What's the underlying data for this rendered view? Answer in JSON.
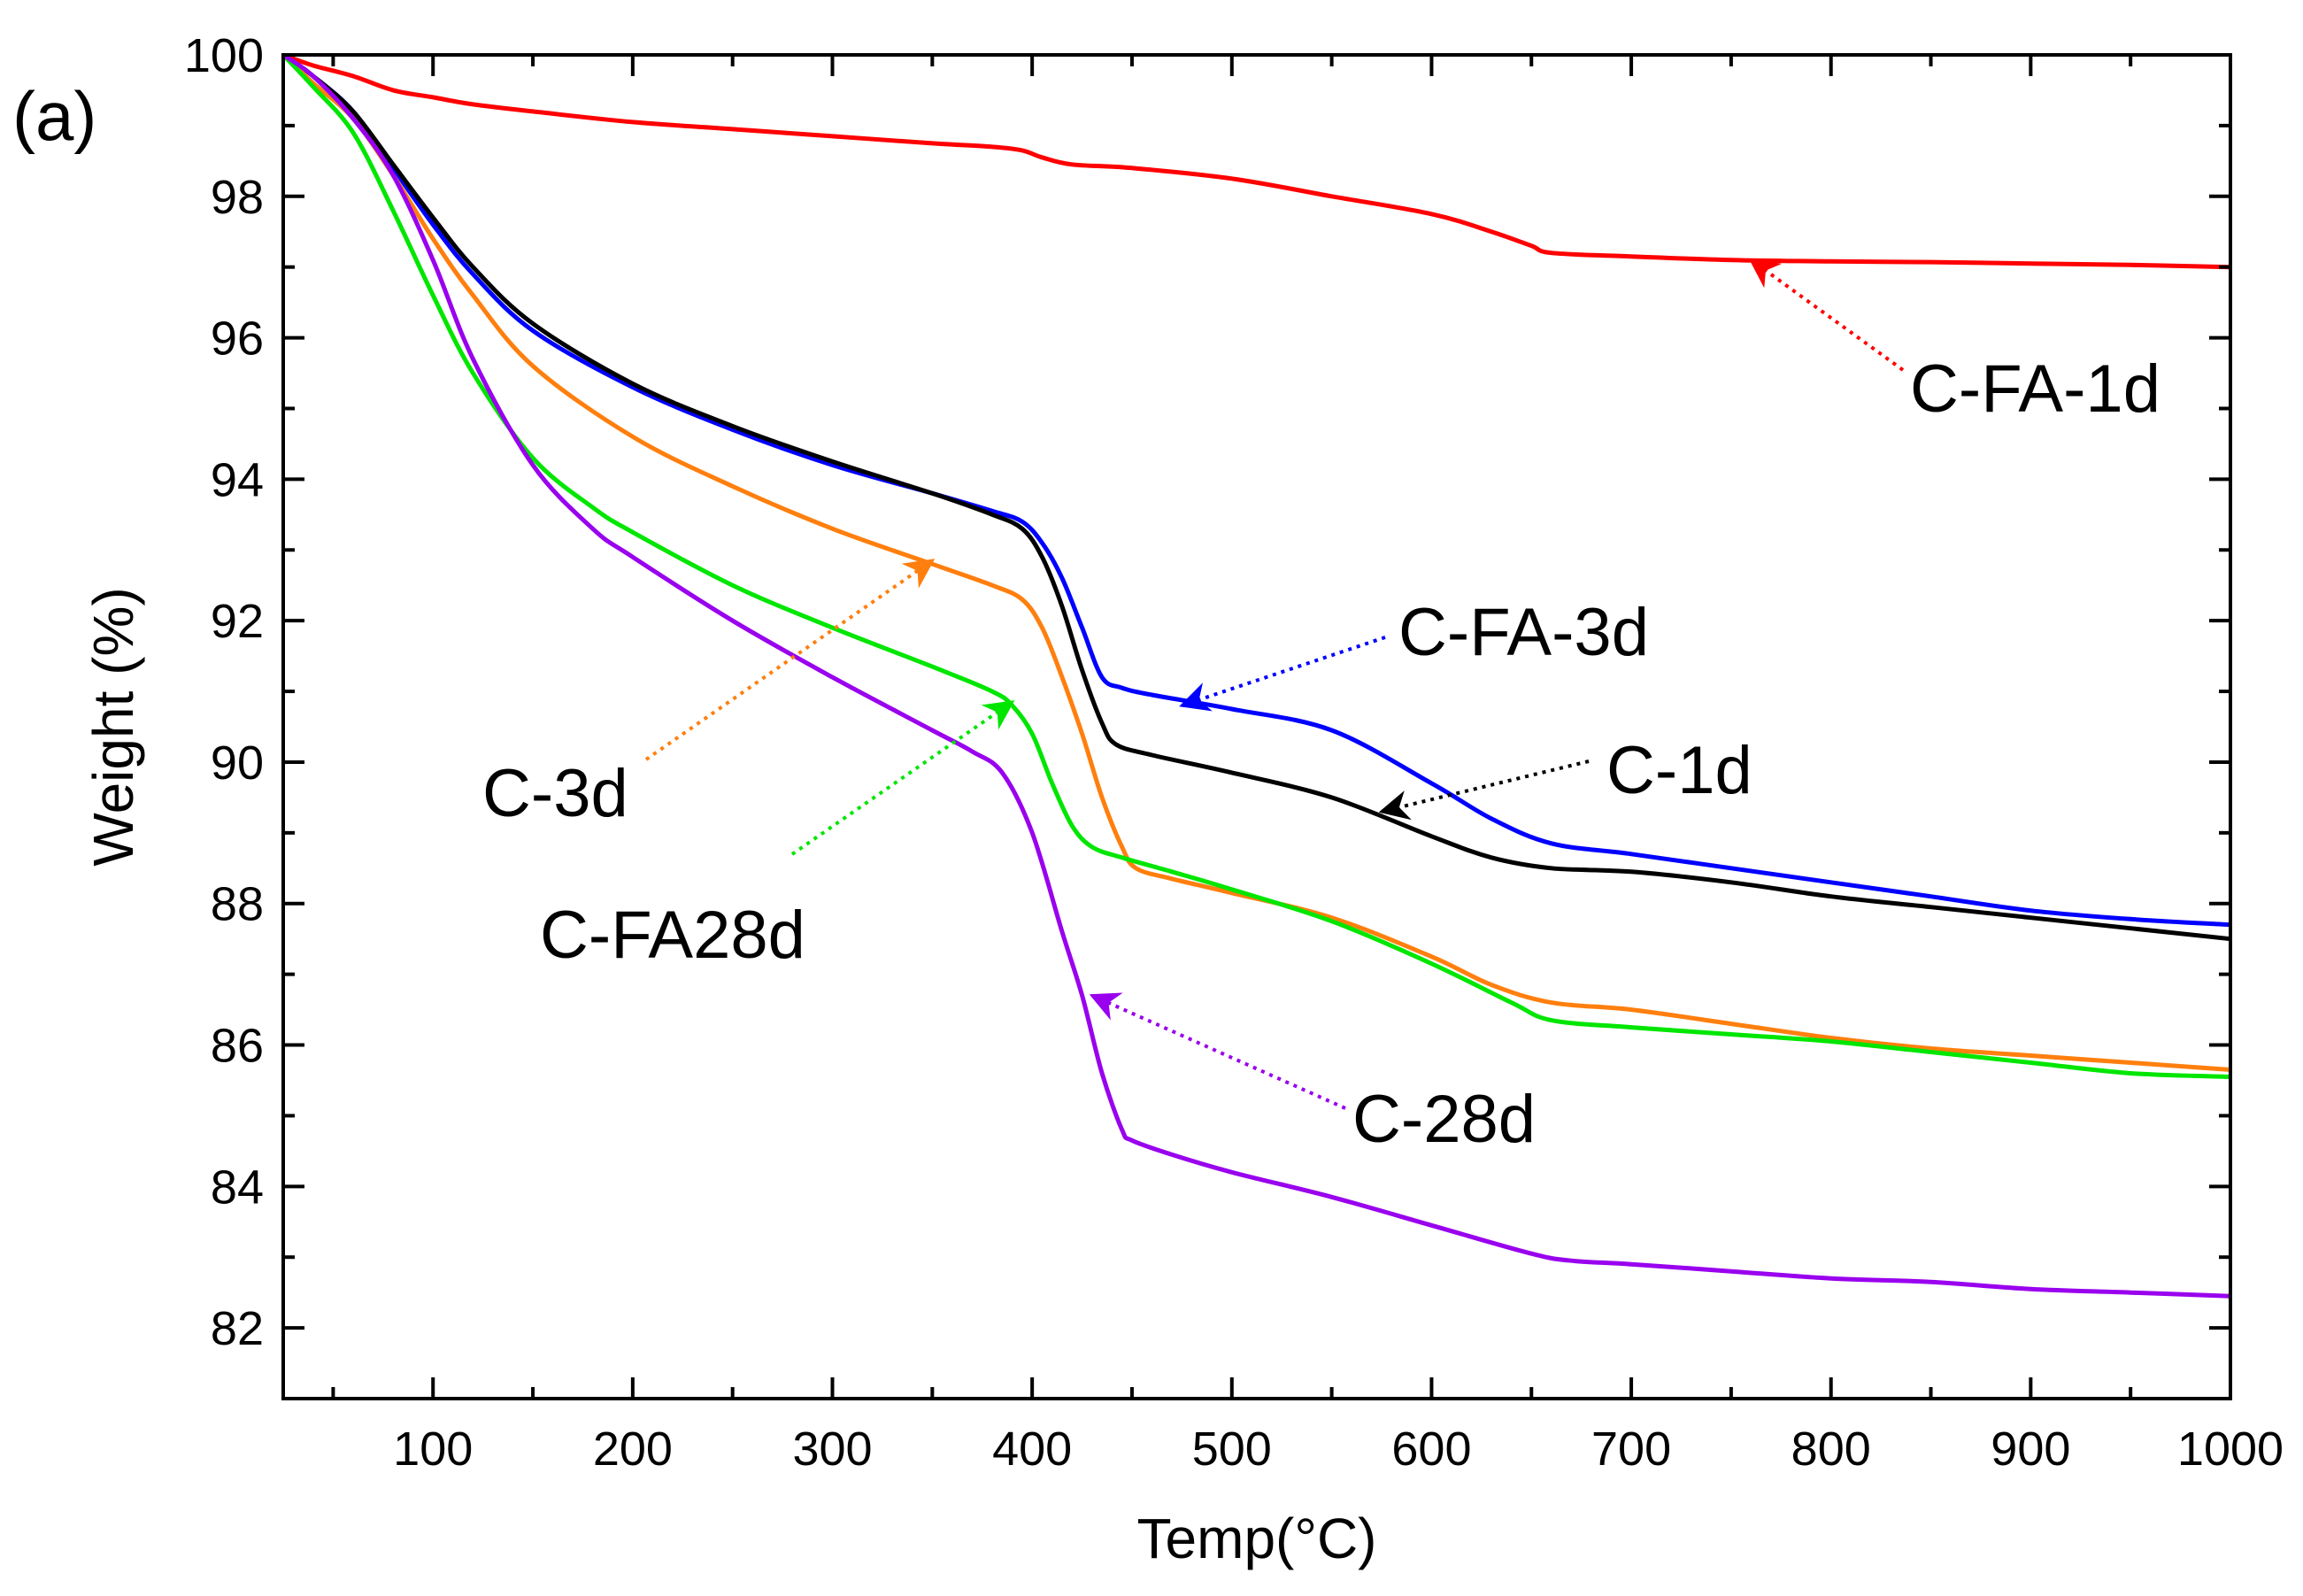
{
  "panel_label": "(a)",
  "chart_data": {
    "type": "line",
    "title": "",
    "xlabel": "Temp(°C)",
    "ylabel": "Weight (%)",
    "xlim": [
      25,
      1000
    ],
    "ylim": [
      81,
      100
    ],
    "xticks": [
      100,
      200,
      300,
      400,
      500,
      600,
      700,
      800,
      900,
      1000
    ],
    "yticks": [
      82,
      84,
      86,
      88,
      90,
      92,
      94,
      96,
      98,
      100
    ],
    "grid": false,
    "series": [
      {
        "name": "C-FA-1d",
        "color": "#ff0000",
        "x": [
          25,
          40,
          60,
          80,
          100,
          120,
          150,
          200,
          250,
          300,
          350,
          380,
          395,
          405,
          420,
          450,
          500,
          550,
          600,
          630,
          650,
          660,
          700,
          750,
          800,
          850,
          900,
          950,
          1000
        ],
        "y": [
          100,
          99.85,
          99.7,
          99.5,
          99.4,
          99.3,
          99.2,
          99.05,
          98.95,
          98.85,
          98.75,
          98.7,
          98.65,
          98.55,
          98.45,
          98.4,
          98.25,
          98.0,
          97.75,
          97.5,
          97.3,
          97.2,
          97.15,
          97.1,
          97.08,
          97.07,
          97.05,
          97.03,
          97.0
        ]
      },
      {
        "name": "C-FA-3d",
        "color": "#0000ff",
        "x": [
          25,
          40,
          60,
          80,
          100,
          120,
          150,
          200,
          250,
          300,
          350,
          380,
          395,
          405,
          415,
          425,
          435,
          445,
          460,
          500,
          550,
          600,
          630,
          660,
          700,
          750,
          800,
          850,
          900,
          950,
          1000
        ],
        "y": [
          100,
          99.7,
          99.2,
          98.4,
          97.6,
          96.9,
          96.1,
          95.3,
          94.7,
          94.2,
          93.8,
          93.55,
          93.4,
          93.1,
          92.6,
          91.9,
          91.2,
          91.05,
          90.95,
          90.75,
          90.45,
          89.7,
          89.2,
          88.85,
          88.7,
          88.5,
          88.3,
          88.1,
          87.9,
          87.78,
          87.7
        ]
      },
      {
        "name": "C-1d",
        "color": "#000000",
        "x": [
          25,
          40,
          60,
          80,
          100,
          120,
          150,
          200,
          250,
          300,
          350,
          380,
          395,
          405,
          415,
          425,
          435,
          442,
          460,
          500,
          550,
          600,
          630,
          660,
          700,
          750,
          800,
          850,
          900,
          950,
          1000
        ],
        "y": [
          100,
          99.7,
          99.2,
          98.45,
          97.7,
          97.0,
          96.2,
          95.35,
          94.75,
          94.25,
          93.8,
          93.5,
          93.3,
          92.9,
          92.2,
          91.3,
          90.55,
          90.25,
          90.1,
          89.85,
          89.5,
          88.95,
          88.65,
          88.5,
          88.45,
          88.3,
          88.1,
          87.95,
          87.8,
          87.65,
          87.5
        ]
      },
      {
        "name": "C-3d",
        "color": "#ff7f0e",
        "x": [
          25,
          40,
          60,
          80,
          100,
          120,
          150,
          200,
          250,
          300,
          350,
          380,
          395,
          405,
          415,
          425,
          435,
          445,
          452,
          470,
          500,
          550,
          600,
          630,
          660,
          700,
          750,
          800,
          850,
          900,
          950,
          1000
        ],
        "y": [
          100,
          99.6,
          99.1,
          98.3,
          97.4,
          96.6,
          95.6,
          94.6,
          93.9,
          93.3,
          92.8,
          92.5,
          92.3,
          91.9,
          91.2,
          90.4,
          89.5,
          88.8,
          88.5,
          88.35,
          88.15,
          87.8,
          87.25,
          86.85,
          86.6,
          86.5,
          86.3,
          86.1,
          85.95,
          85.85,
          85.75,
          85.65
        ]
      },
      {
        "name": "C-FA28d",
        "color": "#00e600",
        "x": [
          25,
          40,
          60,
          80,
          100,
          120,
          150,
          180,
          200,
          250,
          300,
          350,
          380,
          390,
          400,
          410,
          420,
          430,
          445,
          470,
          500,
          550,
          600,
          640,
          660,
          700,
          750,
          800,
          850,
          900,
          950,
          1000
        ],
        "y": [
          100,
          99.55,
          98.9,
          97.8,
          96.6,
          95.5,
          94.3,
          93.6,
          93.25,
          92.5,
          91.9,
          91.35,
          91.0,
          90.8,
          90.4,
          89.7,
          89.1,
          88.8,
          88.65,
          88.45,
          88.2,
          87.75,
          87.15,
          86.6,
          86.35,
          86.25,
          86.15,
          86.05,
          85.9,
          85.75,
          85.6,
          85.55
        ]
      },
      {
        "name": "C-28d",
        "color": "#9900ee",
        "x": [
          25,
          40,
          60,
          80,
          100,
          120,
          150,
          180,
          200,
          250,
          300,
          350,
          370,
          385,
          400,
          415,
          425,
          435,
          445,
          450,
          470,
          500,
          550,
          600,
          650,
          670,
          700,
          750,
          800,
          850,
          900,
          950,
          1000
        ],
        "y": [
          100,
          99.7,
          99.1,
          98.3,
          97.1,
          95.7,
          94.2,
          93.3,
          92.9,
          92.0,
          91.2,
          90.45,
          90.15,
          89.85,
          89.0,
          87.6,
          86.7,
          85.6,
          84.8,
          84.65,
          84.45,
          84.2,
          83.85,
          83.45,
          83.05,
          82.95,
          82.9,
          82.8,
          82.7,
          82.65,
          82.55,
          82.5,
          82.45
        ]
      }
    ],
    "annotations": [
      {
        "text": "C-FA-1d",
        "color": "#ff0000",
        "target": [
          760,
          97.1
        ]
      },
      {
        "text": "C-FA-3d",
        "color": "#0000ff",
        "target": [
          475,
          90.8
        ]
      },
      {
        "text": "C-1d",
        "color": "#000000",
        "target": [
          575,
          89.3
        ]
      },
      {
        "text": "C-3d",
        "color": "#ff7f0e",
        "target": [
          350,
          92.85
        ]
      },
      {
        "text": "C-FA28d",
        "color": "#00e600",
        "target": [
          390,
          90.85
        ]
      },
      {
        "text": "C-28d",
        "color": "#9900ee",
        "target": [
          430,
          86.7
        ]
      }
    ]
  }
}
